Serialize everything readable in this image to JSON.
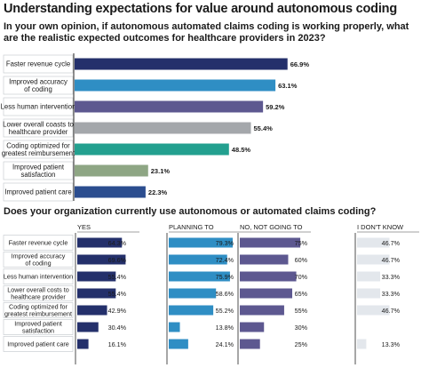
{
  "title": "Understanding expectations for value around autonomous coding",
  "chart_data": [
    {
      "type": "bar",
      "orientation": "horizontal",
      "title": "In your own opinion, if autonomous automated claims coding is working properly, what are the realistic expected outcomes for healthcare providers in 2023?",
      "categories": [
        [
          "Faster revenue cycle"
        ],
        [
          "Improved accuracy",
          "of coding"
        ],
        [
          "Less human intervention"
        ],
        [
          "Lower overall coasts to",
          "healthcare provider"
        ],
        [
          "Coding optimized for",
          "greatest reimbursement"
        ],
        [
          "Improved patient",
          "satisfaction"
        ],
        [
          "Improved patient care"
        ]
      ],
      "values": [
        66.9,
        63.1,
        59.2,
        55.4,
        48.5,
        23.1,
        22.3
      ],
      "value_labels": [
        "66.9%",
        "63.1%",
        "59.2%",
        "55.4%",
        "48.5%",
        "23.1%",
        "22.3%"
      ],
      "colors": [
        "#24306b",
        "#2f8ec4",
        "#5d5890",
        "#a4a7ab",
        "#23a08f",
        "#8ea684",
        "#2b4d8f"
      ],
      "xlim": [
        0,
        72
      ]
    },
    {
      "type": "bar",
      "orientation": "horizontal",
      "title": "Does  your organization currently use autonomous or automated claims coding?",
      "categories": [
        [
          "Faster revenue cycle"
        ],
        [
          "Improved accuracy",
          "of coding"
        ],
        [
          "Less human intervention"
        ],
        [
          "Lower overall costs to",
          "healthcare provider"
        ],
        [
          "Coding optimized for",
          "greatest reimbursement"
        ],
        [
          "Improved patient",
          "satisfaction"
        ],
        [
          "Improved patient care"
        ]
      ],
      "series": [
        {
          "name": "YES",
          "color": "#24306b",
          "values": [
            64.3,
            69.6,
            55.4,
            55.4,
            42.9,
            30.4,
            16.1
          ],
          "labels": [
            "64.3%",
            "69.6%",
            "55.4%",
            "55.4%",
            "42.9%",
            "30.4%",
            "16.1%"
          ]
        },
        {
          "name": "PLANNING TO",
          "color": "#2f8ec4",
          "values": [
            79.3,
            72.4,
            75.9,
            58.6,
            55.2,
            13.8,
            24.1
          ],
          "labels": [
            "79.3%",
            "72.4%",
            "75.9%",
            "58.6%",
            "55.2%",
            "13.8%",
            "24.1%"
          ]
        },
        {
          "name": "NO, NOT GOING TO",
          "color": "#5d5890",
          "values": [
            75,
            60,
            70,
            65,
            55,
            30,
            25
          ],
          "labels": [
            "75%",
            "60%",
            "70%",
            "65%",
            "55%",
            "30%",
            "25%"
          ]
        },
        {
          "name": "I DON'T KNOW",
          "color": "#e3e7ec",
          "values": [
            46.7,
            46.7,
            33.3,
            33.3,
            46.7,
            0,
            13.3
          ],
          "labels": [
            "46.7%",
            "46.7%",
            "33.3%",
            "33.3%",
            "46.7%",
            "",
            "13.3%"
          ]
        }
      ],
      "xlim": [
        0,
        100
      ]
    }
  ]
}
